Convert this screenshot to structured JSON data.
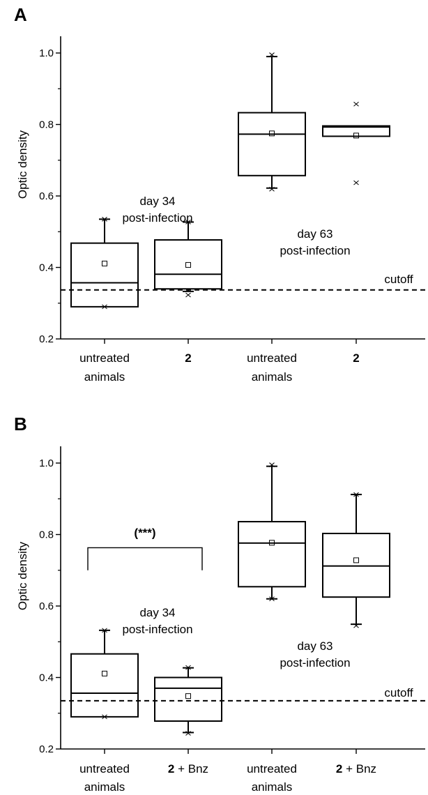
{
  "chart_data": [
    {
      "type": "box",
      "panel_label": "A",
      "ylabel": "Optic density",
      "ylim": [
        0.2,
        1.05
      ],
      "yticks": [
        "0.2",
        "0.4",
        "0.6",
        "0.8",
        "1.0"
      ],
      "categories": [
        {
          "lines": [
            "untreated",
            "animals"
          ],
          "bold": false
        },
        {
          "lines": [
            "2"
          ],
          "bold": true
        },
        {
          "lines": [
            "untreated",
            "animals"
          ],
          "bold": false
        },
        {
          "lines": [
            "2"
          ],
          "bold": true
        }
      ],
      "boxes": [
        {
          "whisker_low": 0.29,
          "q1": 0.29,
          "median": 0.357,
          "q3": 0.468,
          "whisker_high": 0.535,
          "mean": 0.411,
          "min": 0.29,
          "max": 0.535
        },
        {
          "whisker_low": 0.333,
          "q1": 0.34,
          "median": 0.381,
          "q3": 0.477,
          "whisker_high": 0.527,
          "mean": 0.407,
          "min": 0.323,
          "max": 0.527
        },
        {
          "whisker_low": 0.622,
          "q1": 0.657,
          "median": 0.773,
          "q3": 0.833,
          "whisker_high": 0.99,
          "mean": 0.775,
          "min": 0.619,
          "max": 0.995
        },
        {
          "whisker_low": 0.767,
          "q1": 0.767,
          "median": 0.793,
          "q3": 0.796,
          "whisker_high": 0.796,
          "mean": 0.769,
          "min": 0.637,
          "max": 0.857
        }
      ],
      "cutoff": {
        "value": 0.337,
        "label": "cutoff"
      },
      "annotations": [
        {
          "lines": [
            "day 34",
            "post-infection"
          ]
        },
        {
          "lines": [
            "day 63",
            "post-infection"
          ]
        }
      ]
    },
    {
      "type": "box",
      "panel_label": "B",
      "ylabel": "Optic density",
      "ylim": [
        0.2,
        1.05
      ],
      "yticks": [
        "0.2",
        "0.4",
        "0.6",
        "0.8",
        "1.0"
      ],
      "categories": [
        {
          "lines": [
            "untreated",
            "animals"
          ],
          "bold": false
        },
        {
          "parts": [
            {
              "text": "2",
              "bold": true
            },
            {
              "text": " + Bnz",
              "bold": false
            }
          ]
        },
        {
          "lines": [
            "untreated",
            "animals"
          ],
          "bold": false
        },
        {
          "parts": [
            {
              "text": "2",
              "bold": true
            },
            {
              "text": " + Bnz",
              "bold": false
            }
          ]
        }
      ],
      "boxes": [
        {
          "whisker_low": 0.29,
          "q1": 0.29,
          "median": 0.356,
          "q3": 0.466,
          "whisker_high": 0.532,
          "mean": 0.411,
          "min": 0.29,
          "max": 0.532
        },
        {
          "whisker_low": 0.246,
          "q1": 0.278,
          "median": 0.37,
          "q3": 0.4,
          "whisker_high": 0.427,
          "mean": 0.348,
          "min": 0.244,
          "max": 0.428
        },
        {
          "whisker_low": 0.62,
          "q1": 0.654,
          "median": 0.776,
          "q3": 0.836,
          "whisker_high": 0.991,
          "mean": 0.777,
          "min": 0.62,
          "max": 0.995
        },
        {
          "whisker_low": 0.549,
          "q1": 0.625,
          "median": 0.712,
          "q3": 0.803,
          "whisker_high": 0.912,
          "mean": 0.728,
          "min": 0.545,
          "max": 0.912
        }
      ],
      "cutoff": {
        "value": 0.335,
        "label": "cutoff"
      },
      "significance": {
        "label": "(***)",
        "between": [
          0,
          1
        ],
        "level": 0.7
      },
      "annotations": [
        {
          "lines": [
            "day 34",
            "post-infection"
          ]
        },
        {
          "lines": [
            "day 63",
            "post-infection"
          ]
        }
      ]
    }
  ]
}
